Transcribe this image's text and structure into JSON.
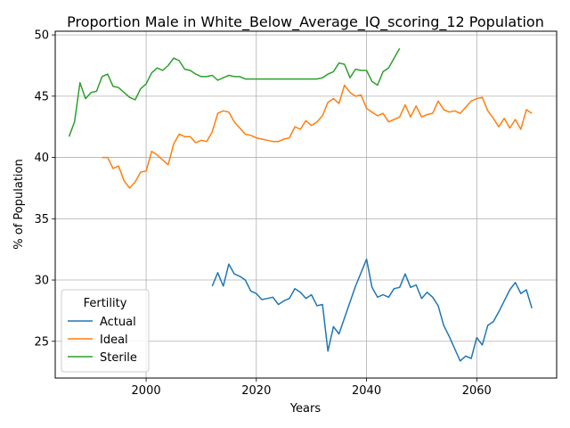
{
  "chart_data": {
    "type": "line",
    "title": "Proportion Male in White_Below_Average_IQ_scoring_12 Population",
    "xlabel": "Years",
    "ylabel": "% of Population",
    "xlim": [
      1983.5,
      2074.5
    ],
    "ylim": [
      22.0,
      50.3
    ],
    "xticks": [
      2000,
      2020,
      2040,
      2060
    ],
    "yticks": [
      25,
      30,
      35,
      40,
      45,
      50
    ],
    "grid": true,
    "legend": {
      "title": "Fertility",
      "placement": "lower-left"
    },
    "series": [
      {
        "name": "Actual",
        "color": "#1f77b4",
        "x": [
          2012,
          2013,
          2014,
          2015,
          2016,
          2017,
          2018,
          2019,
          2020,
          2021,
          2022,
          2023,
          2024,
          2025,
          2026,
          2027,
          2028,
          2029,
          2030,
          2031,
          2032,
          2033,
          2034,
          2035,
          2036,
          2037,
          2038,
          2039,
          2040,
          2041,
          2042,
          2043,
          2044,
          2045,
          2046,
          2047,
          2048,
          2049,
          2050,
          2051,
          2052,
          2053,
          2054,
          2055,
          2056,
          2057,
          2058,
          2059,
          2060,
          2061,
          2062,
          2063,
          2064,
          2065,
          2066,
          2067,
          2068,
          2069,
          2070
        ],
        "values": [
          29.5,
          30.6,
          29.5,
          31.3,
          30.5,
          30.3,
          30.0,
          29.1,
          28.9,
          28.4,
          28.5,
          28.6,
          28.0,
          28.3,
          28.5,
          29.3,
          29.0,
          28.5,
          28.8,
          27.9,
          28.0,
          24.2,
          26.2,
          25.6,
          26.9,
          28.2,
          29.5,
          30.6,
          31.7,
          29.4,
          28.6,
          28.8,
          28.6,
          29.3,
          29.4,
          30.5,
          29.4,
          29.6,
          28.5,
          29.0,
          28.6,
          27.9,
          26.3,
          25.4,
          24.4,
          23.4,
          23.8,
          23.6,
          25.3,
          24.7,
          26.3,
          26.6,
          27.4,
          28.3,
          29.2,
          29.8,
          28.9,
          29.2,
          27.7
        ]
      },
      {
        "name": "Ideal",
        "color": "#ff7f0e",
        "x": [
          1992,
          1993,
          1994,
          1995,
          1996,
          1997,
          1998,
          1999,
          2000,
          2001,
          2002,
          2003,
          2004,
          2005,
          2006,
          2007,
          2008,
          2009,
          2010,
          2011,
          2012,
          2013,
          2014,
          2015,
          2016,
          2017,
          2018,
          2019,
          2020,
          2021,
          2022,
          2023,
          2024,
          2025,
          2026,
          2027,
          2028,
          2029,
          2030,
          2031,
          2032,
          2033,
          2034,
          2035,
          2036,
          2037,
          2038,
          2039,
          2040,
          2041,
          2042,
          2043,
          2044,
          2045,
          2046,
          2047,
          2048,
          2049,
          2050,
          2051,
          2052,
          2053,
          2054,
          2055,
          2056,
          2057,
          2058,
          2059,
          2060,
          2061,
          2062,
          2063,
          2064,
          2065,
          2066,
          2067,
          2068,
          2069,
          2070
        ],
        "values": [
          40.0,
          40.0,
          39.1,
          39.3,
          38.1,
          37.5,
          38.0,
          38.8,
          38.9,
          40.5,
          40.2,
          39.8,
          39.4,
          41.1,
          41.9,
          41.7,
          41.7,
          41.2,
          41.4,
          41.3,
          42.1,
          43.6,
          43.8,
          43.7,
          42.9,
          42.4,
          41.9,
          41.8,
          41.6,
          41.5,
          41.4,
          41.3,
          41.3,
          41.5,
          41.6,
          42.5,
          42.3,
          43.0,
          42.6,
          42.9,
          43.4,
          44.5,
          44.8,
          44.4,
          45.9,
          45.3,
          45.0,
          45.1,
          44.0,
          43.7,
          43.4,
          43.6,
          42.9,
          43.1,
          43.3,
          44.3,
          43.3,
          44.2,
          43.3,
          43.5,
          43.6,
          44.6,
          43.9,
          43.7,
          43.8,
          43.6,
          44.1,
          44.6,
          44.8,
          44.9,
          43.8,
          43.2,
          42.5,
          43.2,
          42.4,
          43.1,
          42.3,
          43.9,
          43.6
        ]
      },
      {
        "name": "Sterile",
        "color": "#2ca02c",
        "x": [
          1986,
          1987,
          1988,
          1989,
          1990,
          1991,
          1992,
          1993,
          1994,
          1995,
          1996,
          1997,
          1998,
          1999,
          2000,
          2001,
          2002,
          2003,
          2004,
          2005,
          2006,
          2007,
          2008,
          2009,
          2010,
          2011,
          2012,
          2013,
          2014,
          2015,
          2016,
          2017,
          2018,
          2019,
          2020,
          2021,
          2022,
          2023,
          2024,
          2025,
          2026,
          2027,
          2028,
          2029,
          2030,
          2031,
          2032,
          2033,
          2034,
          2035,
          2036,
          2037,
          2038,
          2039,
          2040,
          2041,
          2042,
          2043,
          2044,
          2045,
          2046
        ],
        "values": [
          41.7,
          42.9,
          46.1,
          44.8,
          45.3,
          45.4,
          46.6,
          46.8,
          45.8,
          45.7,
          45.3,
          44.9,
          44.7,
          45.6,
          46.0,
          46.9,
          47.3,
          47.1,
          47.5,
          48.1,
          47.9,
          47.2,
          47.1,
          46.8,
          46.6,
          46.6,
          46.7,
          46.3,
          46.5,
          46.7,
          46.6,
          46.6,
          46.4,
          46.4,
          46.4,
          46.4,
          46.4,
          46.4,
          46.4,
          46.4,
          46.4,
          46.4,
          46.4,
          46.4,
          46.4,
          46.4,
          46.5,
          46.8,
          47.0,
          47.7,
          47.6,
          46.5,
          47.2,
          47.1,
          47.1,
          46.2,
          45.9,
          47.0,
          47.3,
          48.1,
          48.9
        ]
      }
    ]
  }
}
